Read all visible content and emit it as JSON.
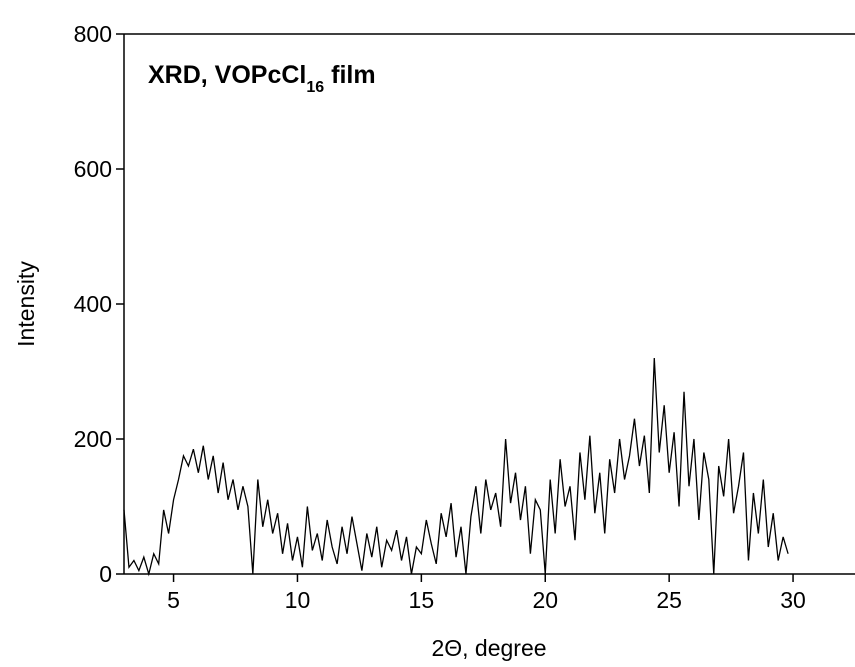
{
  "chart_data": {
    "type": "line",
    "annotation": {
      "main": "XRD, VOPcCl",
      "subscript": "16",
      "suffix": " film"
    },
    "x_label": "2Θ, degree",
    "y_label": "Intensity",
    "x": [
      3.0,
      3.2,
      3.4,
      3.6,
      3.8,
      4.0,
      4.2,
      4.4,
      4.6,
      4.8,
      5.0,
      5.2,
      5.4,
      5.6,
      5.8,
      6.0,
      6.2,
      6.4,
      6.6,
      6.8,
      7.0,
      7.2,
      7.4,
      7.6,
      7.8,
      8.0,
      8.2,
      8.4,
      8.6,
      8.8,
      9.0,
      9.2,
      9.4,
      9.6,
      9.8,
      10.0,
      10.2,
      10.4,
      10.6,
      10.8,
      11.0,
      11.2,
      11.4,
      11.6,
      11.8,
      12.0,
      12.2,
      12.4,
      12.6,
      12.8,
      13.0,
      13.2,
      13.4,
      13.6,
      13.8,
      14.0,
      14.2,
      14.4,
      14.6,
      14.8,
      15.0,
      15.2,
      15.4,
      15.6,
      15.8,
      16.0,
      16.2,
      16.4,
      16.6,
      16.8,
      17.0,
      17.2,
      17.4,
      17.6,
      17.8,
      18.0,
      18.2,
      18.4,
      18.6,
      18.8,
      19.0,
      19.2,
      19.4,
      19.6,
      19.8,
      20.0,
      20.2,
      20.4,
      20.6,
      20.8,
      21.0,
      21.2,
      21.4,
      21.6,
      21.8,
      22.0,
      22.2,
      22.4,
      22.6,
      22.8,
      23.0,
      23.2,
      23.4,
      23.6,
      23.8,
      24.0,
      24.2,
      24.4,
      24.6,
      24.8,
      25.0,
      25.2,
      25.4,
      25.6,
      25.8,
      26.0,
      26.2,
      26.4,
      26.6,
      26.8,
      27.0,
      27.2,
      27.4,
      27.6,
      27.8,
      28.0,
      28.2,
      28.4,
      28.6,
      28.8,
      29.0,
      29.2,
      29.4,
      29.6,
      29.8
    ],
    "series": [
      {
        "color": "#000000",
        "values": [
          95,
          10,
          20,
          5,
          25,
          0,
          30,
          15,
          95,
          60,
          110,
          140,
          175,
          160,
          185,
          150,
          190,
          140,
          175,
          120,
          165,
          110,
          140,
          95,
          130,
          100,
          0,
          140,
          70,
          110,
          60,
          90,
          30,
          75,
          20,
          55,
          10,
          100,
          35,
          60,
          20,
          80,
          40,
          15,
          70,
          30,
          85,
          45,
          5,
          60,
          25,
          70,
          10,
          50,
          35,
          65,
          20,
          55,
          0,
          40,
          30,
          80,
          45,
          15,
          90,
          55,
          105,
          25,
          70,
          0,
          85,
          130,
          60,
          140,
          95,
          120,
          70,
          200,
          105,
          150,
          80,
          130,
          30,
          110,
          95,
          0,
          140,
          60,
          170,
          100,
          130,
          50,
          180,
          110,
          205,
          90,
          150,
          60,
          170,
          120,
          200,
          140,
          175,
          230,
          160,
          205,
          120,
          320,
          180,
          250,
          150,
          210,
          100,
          270,
          130,
          200,
          80,
          180,
          140,
          0,
          160,
          115,
          200,
          90,
          130,
          180,
          20,
          120,
          60,
          140,
          40,
          90,
          20,
          55,
          30
        ]
      }
    ],
    "xlim": [
      3,
      32.5
    ],
    "ylim": [
      0,
      800
    ],
    "xticks": [
      5,
      10,
      15,
      20,
      25,
      30
    ],
    "yticks": [
      0,
      200,
      400,
      600,
      800
    ]
  }
}
